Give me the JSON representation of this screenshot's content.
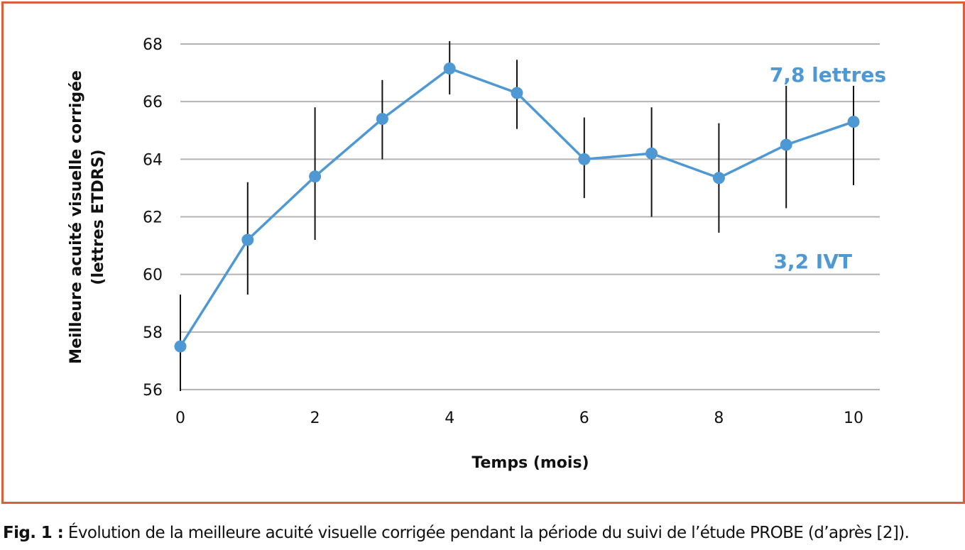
{
  "chart_data": {
    "type": "line",
    "title": "",
    "xlabel": "Temps (mois)",
    "ylabel_line1": "Meilleure acuité visuelle corrigée",
    "ylabel_line2": "(lettres ETDRS)",
    "xlim": [
      0,
      10.4
    ],
    "ylim": [
      56,
      68
    ],
    "x_ticks": [
      "0",
      "2",
      "4",
      "6",
      "8",
      "10"
    ],
    "y_ticks": [
      "56",
      "58",
      "60",
      "62",
      "64",
      "66",
      "68"
    ],
    "grid": "horizontal",
    "series": [
      {
        "x": [
          0,
          1,
          2,
          3,
          4,
          5,
          6,
          7,
          8,
          9,
          10
        ],
        "values": [
          57.5,
          61.2,
          63.4,
          65.4,
          67.15,
          66.3,
          64.0,
          64.2,
          63.35,
          64.5,
          65.3
        ],
        "error_low": [
          55.95,
          59.3,
          61.2,
          64.0,
          66.25,
          65.05,
          62.65,
          62.0,
          61.45,
          62.3,
          63.1
        ],
        "error_high": [
          59.3,
          63.2,
          65.8,
          66.75,
          68.1,
          67.45,
          65.45,
          65.8,
          65.25,
          66.55,
          66.55
        ],
        "color": "#4e98d3"
      }
    ],
    "annotations": [
      {
        "text": "7,8 lettres",
        "color": "#4e98d3"
      },
      {
        "text": "3,2 IVT",
        "color": "#4e98d3"
      }
    ]
  },
  "caption": {
    "lead": "Fig. 1 :",
    "text": " Évolution de la meilleure acuité visuelle corrigée pendant la période du suivi de l’étude PROBE (d’après [2])."
  },
  "colors": {
    "frame": "#d9603a",
    "series": "#4e98d3",
    "grid": "#b3b3b3",
    "error_bar": "#111111",
    "text": "#111111"
  }
}
